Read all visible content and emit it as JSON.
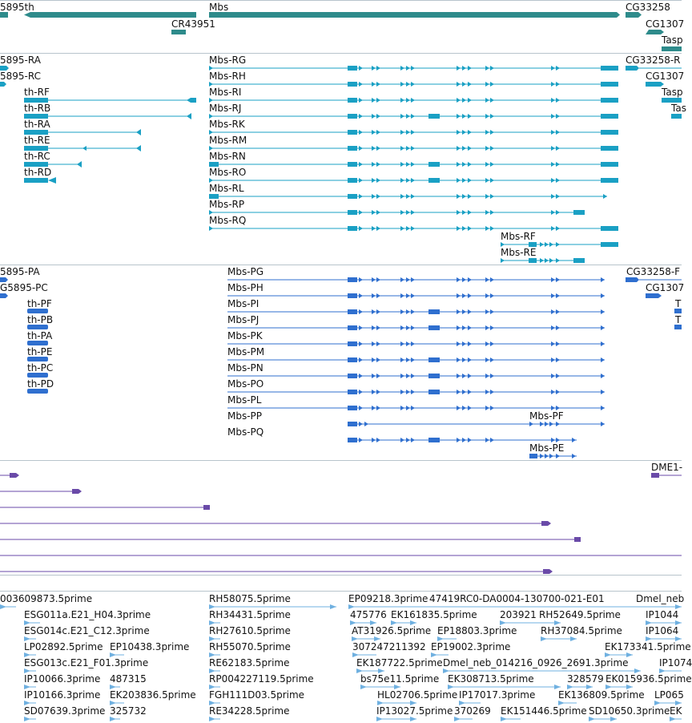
{
  "gene_track": {
    "labels": {
      "th": "5895th",
      "cr": "CR43951",
      "mbs": "Mbs",
      "cg33258": "CG33258",
      "cg1307": "CG1307",
      "tasp": "Tasp"
    }
  },
  "transcript_track": {
    "labels": {
      "ra5895": "5895-RA",
      "rc5895": "5895-RC",
      "rf": "th-RF",
      "rb": "th-RB",
      "ra": "th-RA",
      "re": "th-RE",
      "rc": "th-RC",
      "rd": "th-RD",
      "mrg": "Mbs-RG",
      "mrh": "Mbs-RH",
      "mri": "Mbs-RI",
      "mrj": "Mbs-RJ",
      "mrk": "Mbs-RK",
      "mrm": "Mbs-RM",
      "mrn": "Mbs-RN",
      "mro": "Mbs-RO",
      "mrl": "Mbs-RL",
      "mrp": "Mbs-RP",
      "mrq": "Mbs-RQ",
      "mrf": "Mbs-RF",
      "mre": "Mbs-RE",
      "cgr": "CG33258-R",
      "cg1307": "CG1307",
      "tasp": "Tasp",
      "tas": "Tas"
    }
  },
  "protein_track": {
    "labels": {
      "pa5895": "5895-PA",
      "pc5895": "G5895-PC",
      "pf": "th-PF",
      "pb": "th-PB",
      "pa": "th-PA",
      "pe": "th-PE",
      "pc": "th-PC",
      "pd": "th-PD",
      "mpg": "Mbs-PG",
      "mph": "Mbs-PH",
      "mpi": "Mbs-PI",
      "mpj": "Mbs-PJ",
      "mpk": "Mbs-PK",
      "mpm": "Mbs-PM",
      "mpn": "Mbs-PN",
      "mpo": "Mbs-PO",
      "mpl": "Mbs-PL",
      "mpp": "Mbs-PP",
      "mpq": "Mbs-PQ",
      "mpf": "Mbs-PF",
      "mpe": "Mbs-PE",
      "cgp": "CG33258-F",
      "cg1307": "CG1307",
      "t1": "T",
      "t2": "T"
    }
  },
  "misc_track": {
    "labels": {
      "dme": "DME1-"
    }
  },
  "est_track": {
    "labels": {
      "l1": "003609873.5prime",
      "l2": "ESG011a.E21_H04.3prime",
      "l3": "ESG014c.E21_C12.3prime",
      "l4": "LP02892.5prime",
      "l5": "EP10438.3prime",
      "l6": "ESG013c.E21_F01.3prime",
      "l7": "IP10066.3prime",
      "l8": "487315",
      "l9": "IP10166.3prime",
      "l10": "EK203836.5prime",
      "l11": "SD07639.3prime",
      "l12": "325732",
      "m1": "RH58075.5prime",
      "m2": "RH34431.5prime",
      "m3": "RH27610.5prime",
      "m4": "RH55070.5prime",
      "m5": "RE62183.5prime",
      "m6": "RP004227119.5prime",
      "m7": "FGH111D03.5prime",
      "m8": "RE34228.5prime",
      "r1": "EP09218.3prime",
      "r2": "47419RC0-DA0004-130700-021-E01",
      "r3": "475776",
      "r4": "EK161835.5prime",
      "r5": "203921",
      "r6": "RH52649.5prime",
      "r7": "AT31926.5prime",
      "r8": "EP18803.3prime",
      "r9": "RH37084.5prime",
      "r10": "307247211392",
      "r11": "EP19002.3prime",
      "r12": "EK173341.5prime",
      "r13": "EK187722.5prime",
      "r14": "Dmel_neb_014216_0926_2691.3prime",
      "r15": "bs75e11.5prime",
      "r16": "EK308713.5prime",
      "r17": "328579",
      "r18": "EK015936.5prime",
      "r19": "HL02706.5prime",
      "r20": "IP17017.3prime",
      "r21": "EK136809.5prime",
      "r22": "IP13027.5prime",
      "r23": "370269",
      "r24": "EK151446.5prime",
      "r25": "SD10650.3prime",
      "x1": "Dmel_neb",
      "x2": "IP1044",
      "x3": "IP1064",
      "x4": "IP1074",
      "x5": "LP065",
      "x6": "EK"
    }
  },
  "colors": {
    "gene": "#2e8b8b",
    "transcript": "#1aa0c4",
    "protein": "#2f6fcf",
    "misc": "#6a4aa8",
    "est": "#6fb0e0",
    "divider": "#b8c4cc"
  }
}
